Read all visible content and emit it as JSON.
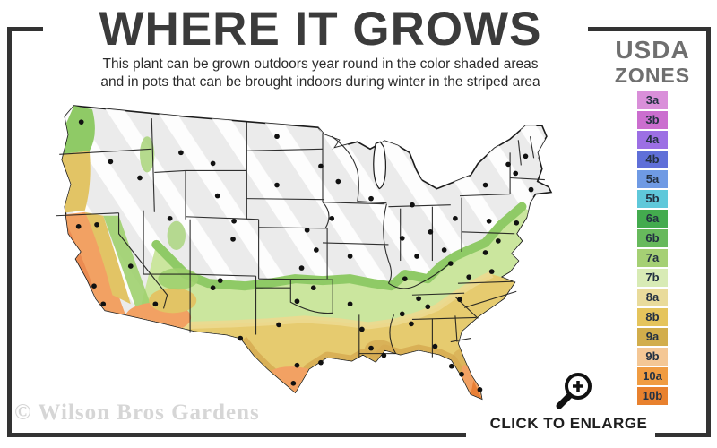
{
  "header": {
    "title": "WHERE IT GROWS",
    "subtitle_line1": "This plant can be grown outdoors year round in the color shaded areas",
    "subtitle_line2": "and in pots that can be brought indoors during winter in the striped area"
  },
  "legend": {
    "title_line1": "USDA",
    "title_line2": "ZONES",
    "zones": [
      {
        "label": "3a",
        "color": "#d98fd9"
      },
      {
        "label": "3b",
        "color": "#cb6ecf"
      },
      {
        "label": "4a",
        "color": "#9c6fe4"
      },
      {
        "label": "4b",
        "color": "#5f6fd8"
      },
      {
        "label": "5a",
        "color": "#6f9ae4"
      },
      {
        "label": "5b",
        "color": "#5fc8da"
      },
      {
        "label": "6a",
        "color": "#43ab4e"
      },
      {
        "label": "6b",
        "color": "#67b95c"
      },
      {
        "label": "7a",
        "color": "#a5d074"
      },
      {
        "label": "7b",
        "color": "#d8ebb5"
      },
      {
        "label": "8a",
        "color": "#e9db9b"
      },
      {
        "label": "8b",
        "color": "#e5c45c"
      },
      {
        "label": "9a",
        "color": "#d2ad4b"
      },
      {
        "label": "9b",
        "color": "#f4c795"
      },
      {
        "label": "10a",
        "color": "#f09c42"
      },
      {
        "label": "10b",
        "color": "#e8812e"
      }
    ]
  },
  "map": {
    "base_color": "#ebebeb",
    "stripe_color": "#ffffff",
    "outline_color": "#1c1c1c",
    "dot_color": "#111111"
  },
  "footer": {
    "enlarge_label": "CLICK TO ENLARGE",
    "watermark": "© Wilson Bros Gardens"
  },
  "frame_color": "#333333"
}
